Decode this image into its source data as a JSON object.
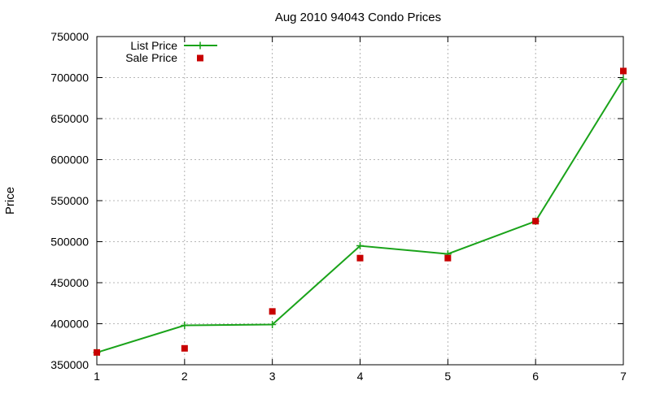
{
  "chart_data": {
    "type": "line",
    "title": "Aug 2010 94043 Condo Prices",
    "xlabel": "",
    "ylabel": "Price",
    "x": [
      1,
      2,
      3,
      4,
      5,
      6,
      7
    ],
    "xticks": [
      "1",
      "2",
      "3",
      "4",
      "5",
      "6",
      "7"
    ],
    "xlim": [
      1,
      7
    ],
    "ylim": [
      350000,
      750000
    ],
    "yticks": [
      "350000",
      "400000",
      "450000",
      "500000",
      "550000",
      "600000",
      "650000",
      "700000",
      "750000"
    ],
    "grid": true,
    "legend_position": "top-left",
    "series": [
      {
        "name": "List Price",
        "style": "line-with-plus-markers",
        "color": "#1aa31a",
        "values": [
          365000,
          398000,
          399000,
          495000,
          485000,
          525000,
          698000
        ]
      },
      {
        "name": "Sale Price",
        "style": "square-markers",
        "color": "#c80000",
        "values": [
          365000,
          370000,
          415000,
          480000,
          480000,
          525000,
          708000
        ]
      }
    ]
  }
}
